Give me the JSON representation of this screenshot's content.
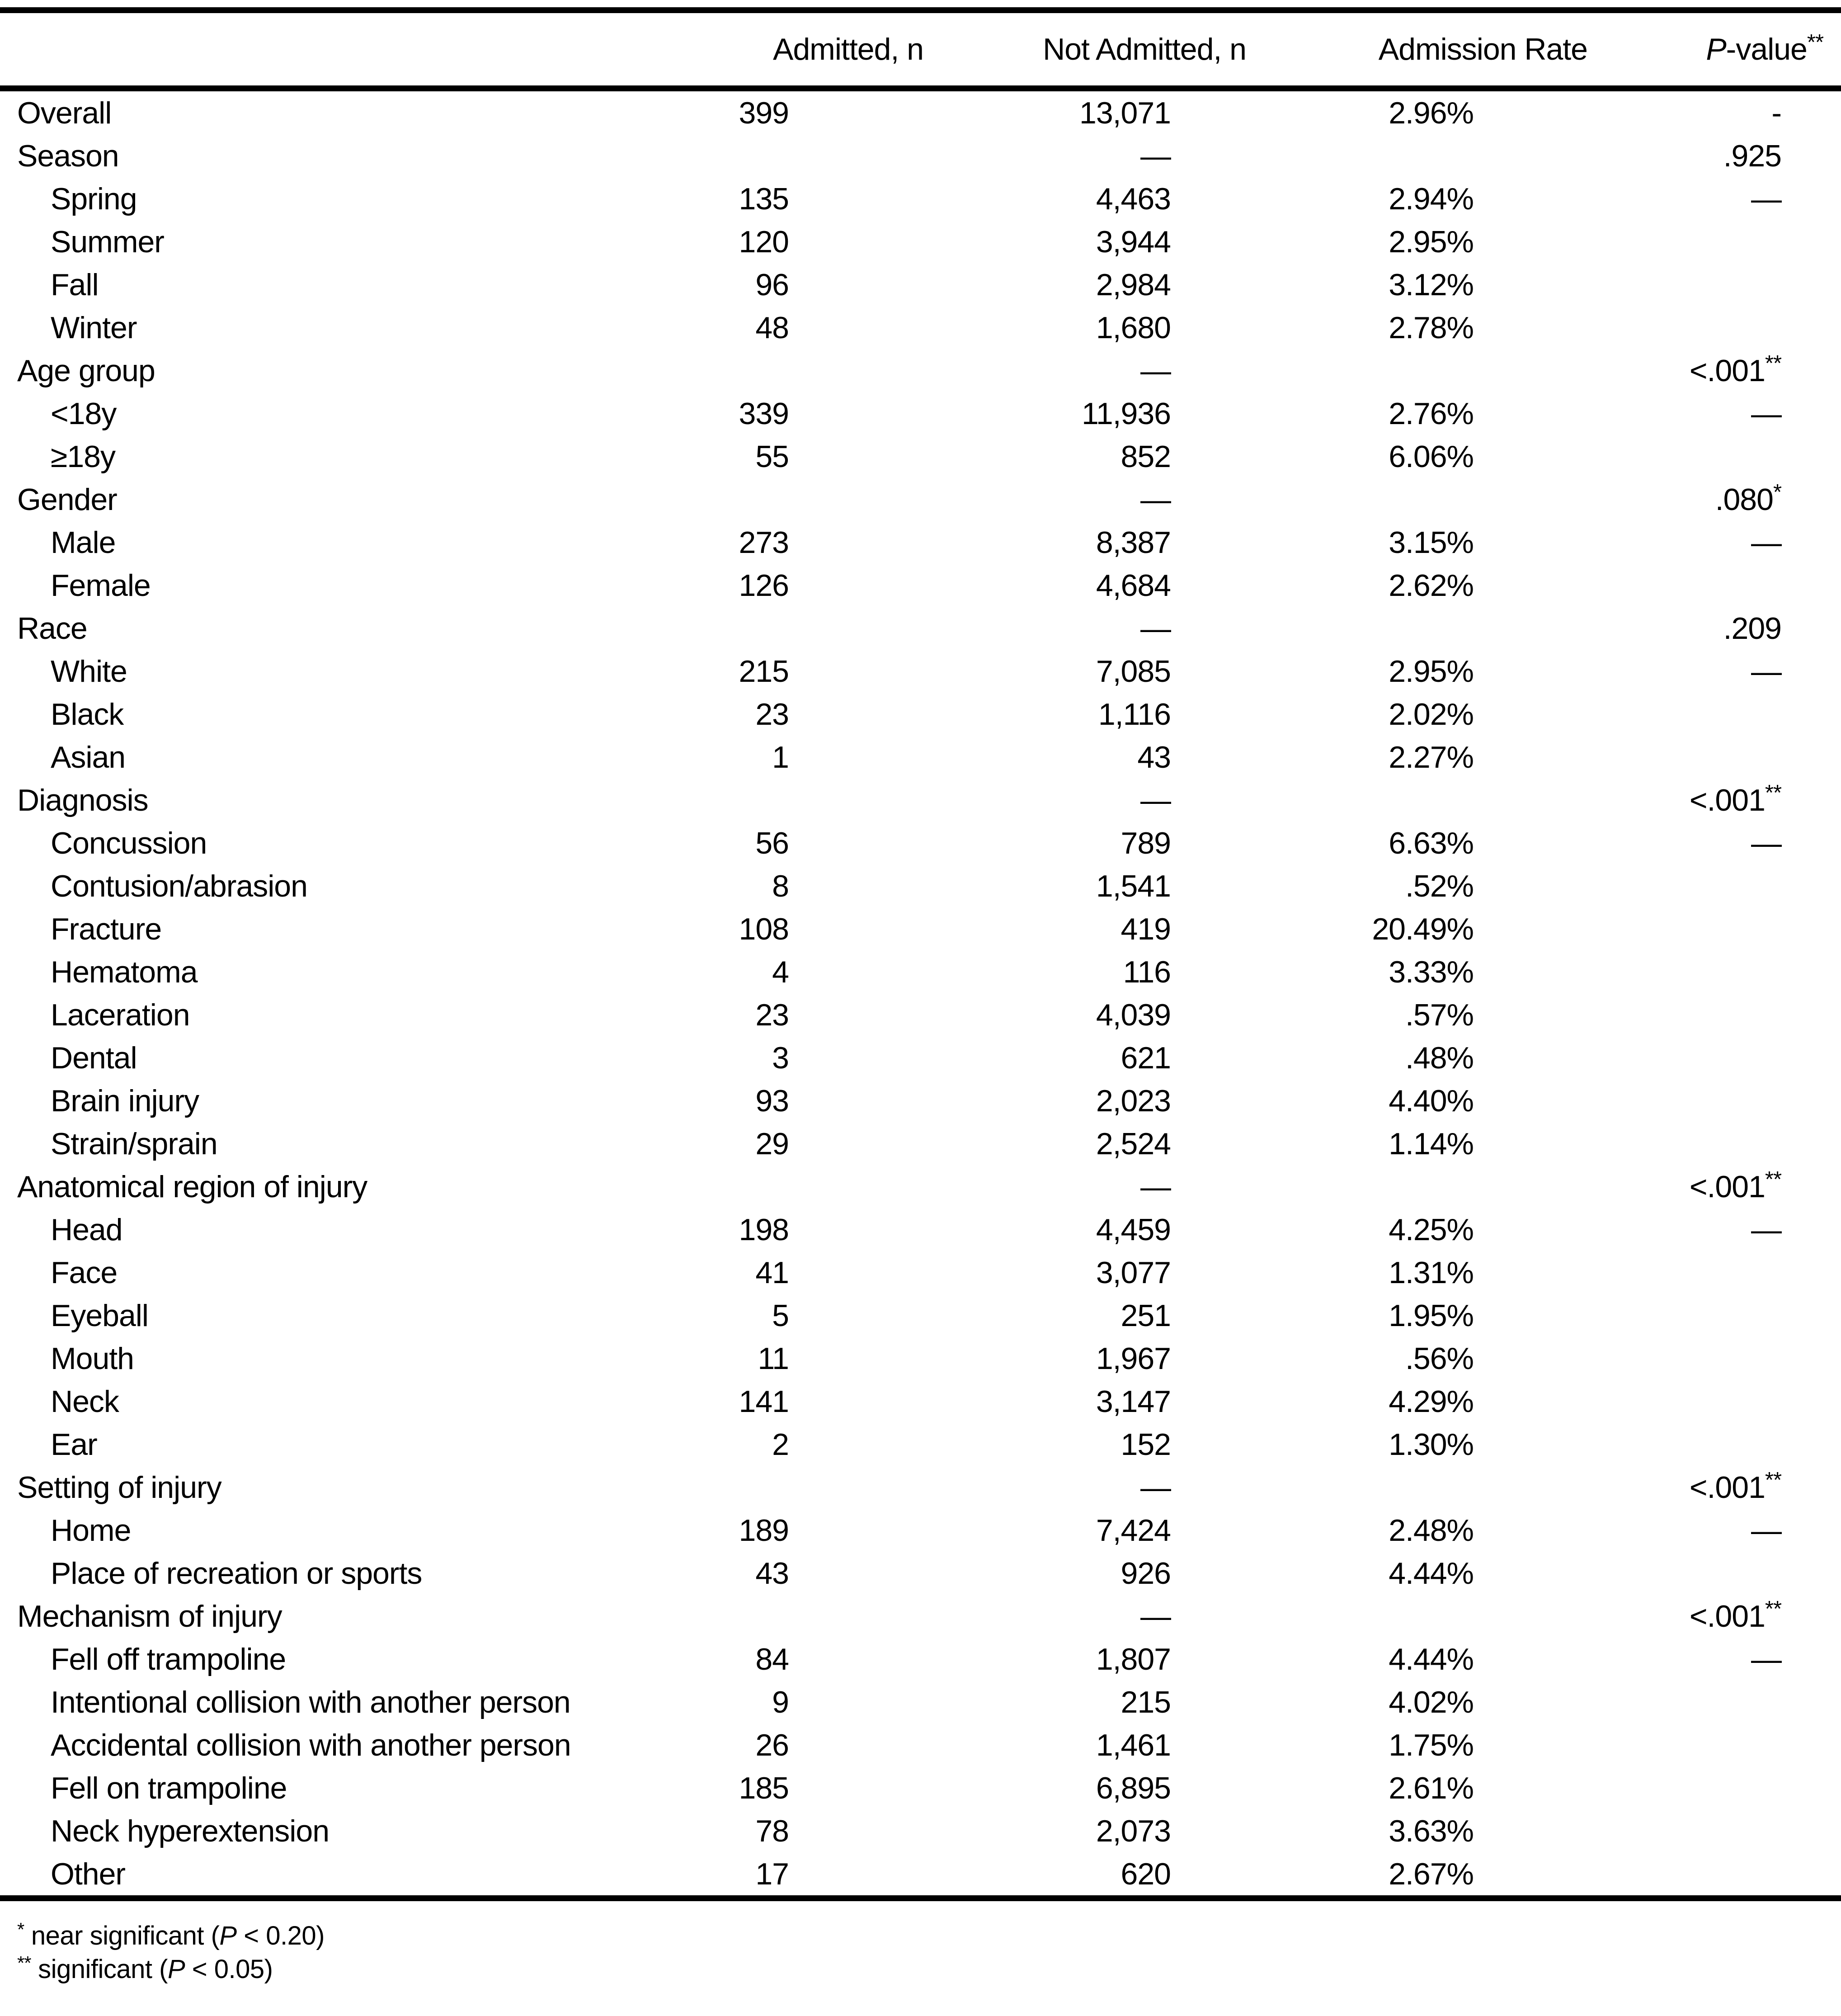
{
  "table": {
    "columns": {
      "admitted": "Admitted, n",
      "not_admitted": "Not Admitted, n",
      "rate": "Admission Rate",
      "pvalue_p": "P",
      "pvalue_rest": "-value",
      "pvalue_sup": "**"
    },
    "rows": [
      {
        "label": "Overall",
        "indent": false,
        "admitted": "399",
        "not_admitted": "13,071",
        "rate": "2.96%",
        "p": "-",
        "p_sup": ""
      },
      {
        "label": "Season",
        "indent": false,
        "admitted": "",
        "not_admitted": "—",
        "rate": "",
        "p": ".925",
        "p_sup": ""
      },
      {
        "label": "Spring",
        "indent": true,
        "admitted": "135",
        "not_admitted": "4,463",
        "rate": "2.94%",
        "p": "—",
        "p_sup": ""
      },
      {
        "label": "Summer",
        "indent": true,
        "admitted": "120",
        "not_admitted": "3,944",
        "rate": "2.95%",
        "p": "",
        "p_sup": ""
      },
      {
        "label": "Fall",
        "indent": true,
        "admitted": "96",
        "not_admitted": "2,984",
        "rate": "3.12%",
        "p": "",
        "p_sup": ""
      },
      {
        "label": "Winter",
        "indent": true,
        "admitted": "48",
        "not_admitted": "1,680",
        "rate": "2.78%",
        "p": "",
        "p_sup": ""
      },
      {
        "label": "Age group",
        "indent": false,
        "admitted": "",
        "not_admitted": "—",
        "rate": "",
        "p": "<.001",
        "p_sup": "**"
      },
      {
        "label": "<18y",
        "indent": true,
        "admitted": "339",
        "not_admitted": "11,936",
        "rate": "2.76%",
        "p": "—",
        "p_sup": ""
      },
      {
        "label": "≥18y",
        "indent": true,
        "admitted": "55",
        "not_admitted": "852",
        "rate": "6.06%",
        "p": "",
        "p_sup": ""
      },
      {
        "label": "Gender",
        "indent": false,
        "admitted": "",
        "not_admitted": "—",
        "rate": "",
        "p": ".080",
        "p_sup": "*"
      },
      {
        "label": "Male",
        "indent": true,
        "admitted": "273",
        "not_admitted": "8,387",
        "rate": "3.15%",
        "p": "—",
        "p_sup": ""
      },
      {
        "label": "Female",
        "indent": true,
        "admitted": "126",
        "not_admitted": "4,684",
        "rate": "2.62%",
        "p": "",
        "p_sup": ""
      },
      {
        "label": "Race",
        "indent": false,
        "admitted": "",
        "not_admitted": "—",
        "rate": "",
        "p": ".209",
        "p_sup": ""
      },
      {
        "label": "White",
        "indent": true,
        "admitted": "215",
        "not_admitted": "7,085",
        "rate": "2.95%",
        "p": "—",
        "p_sup": ""
      },
      {
        "label": "Black",
        "indent": true,
        "admitted": "23",
        "not_admitted": "1,116",
        "rate": "2.02%",
        "p": "",
        "p_sup": ""
      },
      {
        "label": "Asian",
        "indent": true,
        "admitted": "1",
        "not_admitted": "43",
        "rate": "2.27%",
        "p": "",
        "p_sup": ""
      },
      {
        "label": "Diagnosis",
        "indent": false,
        "admitted": "",
        "not_admitted": "—",
        "rate": "",
        "p": "<.001",
        "p_sup": "**"
      },
      {
        "label": "Concussion",
        "indent": true,
        "admitted": "56",
        "not_admitted": "789",
        "rate": "6.63%",
        "p": "—",
        "p_sup": ""
      },
      {
        "label": "Contusion/abrasion",
        "indent": true,
        "admitted": "8",
        "not_admitted": "1,541",
        "rate": ".52%",
        "p": "",
        "p_sup": ""
      },
      {
        "label": "Fracture",
        "indent": true,
        "admitted": "108",
        "not_admitted": "419",
        "rate": "20.49%",
        "p": "",
        "p_sup": ""
      },
      {
        "label": "Hematoma",
        "indent": true,
        "admitted": "4",
        "not_admitted": "116",
        "rate": "3.33%",
        "p": "",
        "p_sup": ""
      },
      {
        "label": "Laceration",
        "indent": true,
        "admitted": "23",
        "not_admitted": "4,039",
        "rate": ".57%",
        "p": "",
        "p_sup": ""
      },
      {
        "label": "Dental",
        "indent": true,
        "admitted": "3",
        "not_admitted": "621",
        "rate": ".48%",
        "p": "",
        "p_sup": ""
      },
      {
        "label": "Brain injury",
        "indent": true,
        "admitted": "93",
        "not_admitted": "2,023",
        "rate": "4.40%",
        "p": "",
        "p_sup": ""
      },
      {
        "label": "Strain/sprain",
        "indent": true,
        "admitted": "29",
        "not_admitted": "2,524",
        "rate": "1.14%",
        "p": "",
        "p_sup": ""
      },
      {
        "label": "Anatomical region of injury",
        "indent": false,
        "admitted": "",
        "not_admitted": "—",
        "rate": "",
        "p": "<.001",
        "p_sup": "**"
      },
      {
        "label": "Head",
        "indent": true,
        "admitted": "198",
        "not_admitted": "4,459",
        "rate": "4.25%",
        "p": "—",
        "p_sup": ""
      },
      {
        "label": "Face",
        "indent": true,
        "admitted": "41",
        "not_admitted": "3,077",
        "rate": "1.31%",
        "p": "",
        "p_sup": ""
      },
      {
        "label": "Eyeball",
        "indent": true,
        "admitted": "5",
        "not_admitted": "251",
        "rate": "1.95%",
        "p": "",
        "p_sup": ""
      },
      {
        "label": "Mouth",
        "indent": true,
        "admitted": "11",
        "not_admitted": "1,967",
        "rate": ".56%",
        "p": "",
        "p_sup": ""
      },
      {
        "label": "Neck",
        "indent": true,
        "admitted": "141",
        "not_admitted": "3,147",
        "rate": "4.29%",
        "p": "",
        "p_sup": ""
      },
      {
        "label": "Ear",
        "indent": true,
        "admitted": "2",
        "not_admitted": "152",
        "rate": "1.30%",
        "p": "",
        "p_sup": ""
      },
      {
        "label": "Setting of injury",
        "indent": false,
        "admitted": "",
        "not_admitted": "—",
        "rate": "",
        "p": "<.001",
        "p_sup": "**"
      },
      {
        "label": "Home",
        "indent": true,
        "admitted": "189",
        "not_admitted": "7,424",
        "rate": "2.48%",
        "p": "—",
        "p_sup": ""
      },
      {
        "label": "Place of recreation or sports",
        "indent": true,
        "admitted": "43",
        "not_admitted": "926",
        "rate": "4.44%",
        "p": "",
        "p_sup": ""
      },
      {
        "label": "Mechanism of injury",
        "indent": false,
        "admitted": "",
        "not_admitted": "—",
        "rate": "",
        "p": "<.001",
        "p_sup": "**"
      },
      {
        "label": "Fell off trampoline",
        "indent": true,
        "admitted": "84",
        "not_admitted": "1,807",
        "rate": "4.44%",
        "p": "—",
        "p_sup": ""
      },
      {
        "label": "Intentional collision with another person",
        "indent": true,
        "admitted": "9",
        "not_admitted": "215",
        "rate": "4.02%",
        "p": "",
        "p_sup": ""
      },
      {
        "label": "Accidental collision with another person",
        "indent": true,
        "admitted": "26",
        "not_admitted": "1,461",
        "rate": "1.75%",
        "p": "",
        "p_sup": ""
      },
      {
        "label": "Fell on trampoline",
        "indent": true,
        "admitted": "185",
        "not_admitted": "6,895",
        "rate": "2.61%",
        "p": "",
        "p_sup": ""
      },
      {
        "label": "Neck hyperextension",
        "indent": true,
        "admitted": "78",
        "not_admitted": "2,073",
        "rate": "3.63%",
        "p": "",
        "p_sup": ""
      },
      {
        "label": "Other",
        "indent": true,
        "admitted": "17",
        "not_admitted": "620",
        "rate": "2.67%",
        "p": "",
        "p_sup": ""
      }
    ],
    "footnotes": [
      {
        "sym": "*",
        "before": " near significant (",
        "p": "P",
        "after": " < 0.20)"
      },
      {
        "sym": "**",
        "before": " significant (",
        "p": "P",
        "after": " < 0.05)"
      }
    ]
  }
}
